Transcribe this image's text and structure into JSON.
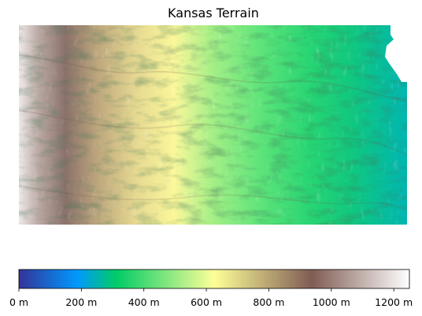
{
  "chart_data": {
    "type": "heatmap",
    "title": "Kansas Terrain",
    "colormap": "terrain",
    "colorbar": {
      "orientation": "horizontal",
      "placement": "bottom",
      "range": [
        0,
        1250
      ],
      "unit": "m",
      "tick_values": [
        0,
        200,
        400,
        600,
        800,
        1000,
        1200
      ],
      "tick_labels": [
        "0 m",
        "200 m",
        "400 m",
        "600 m",
        "800 m",
        "1000 m",
        "1200 m"
      ]
    },
    "elevation_trend": {
      "direction": "west-to-east",
      "west_max_m": 1230,
      "east_min_m": 210
    },
    "axes_visible": false
  }
}
